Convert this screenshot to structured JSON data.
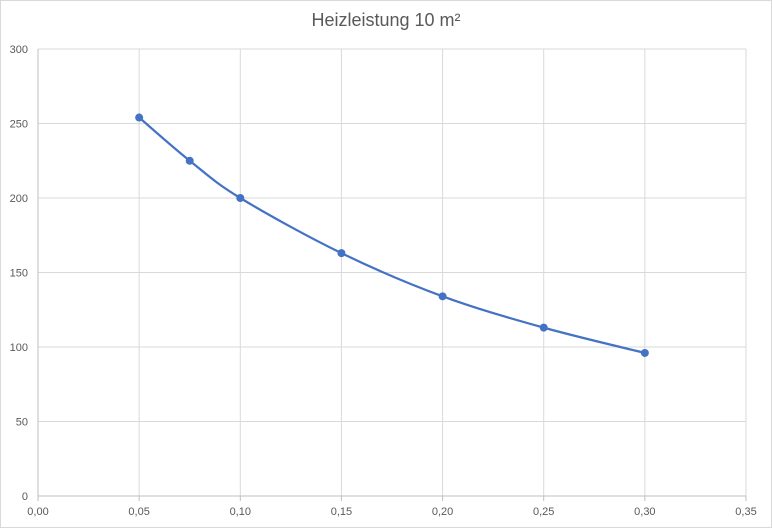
{
  "chart_data": {
    "type": "line",
    "title": "Heizleistung 10 m²",
    "xlabel": "",
    "ylabel": "",
    "xlim": [
      0,
      0.35
    ],
    "ylim": [
      0,
      300
    ],
    "grid": true,
    "legend": "none",
    "color": "#4472c4",
    "x_ticks": [
      0.0,
      0.05,
      0.1,
      0.15,
      0.2,
      0.25,
      0.3,
      0.35
    ],
    "x_tick_labels": [
      "0,00",
      "0,05",
      "0,10",
      "0,15",
      "0,20",
      "0,25",
      "0,30",
      "0,35"
    ],
    "y_ticks": [
      0,
      50,
      100,
      150,
      200,
      250,
      300
    ],
    "y_tick_labels": [
      "0",
      "50",
      "100",
      "150",
      "200",
      "250",
      "300"
    ],
    "series": [
      {
        "x": [
          0.05,
          0.075,
          0.1,
          0.15,
          0.2,
          0.25,
          0.3
        ],
        "y": [
          254,
          225,
          200,
          163,
          134,
          113,
          96
        ]
      }
    ]
  }
}
